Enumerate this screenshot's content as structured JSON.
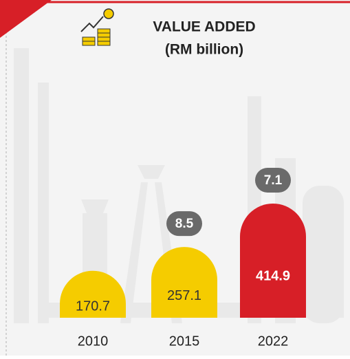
{
  "chart_data": {
    "type": "bar",
    "title": "VALUE ADDED",
    "subtitle": "(RM billion)",
    "categories": [
      "2010",
      "2015",
      "2022"
    ],
    "values": [
      170.7,
      257.1,
      414.9
    ],
    "colors": [
      "#f5cc00",
      "#f5cc00",
      "#d71f27"
    ],
    "label_colors": [
      "#333333",
      "#333333",
      "#ffffff"
    ],
    "annotations": [
      null,
      8.5,
      7.1
    ]
  }
}
